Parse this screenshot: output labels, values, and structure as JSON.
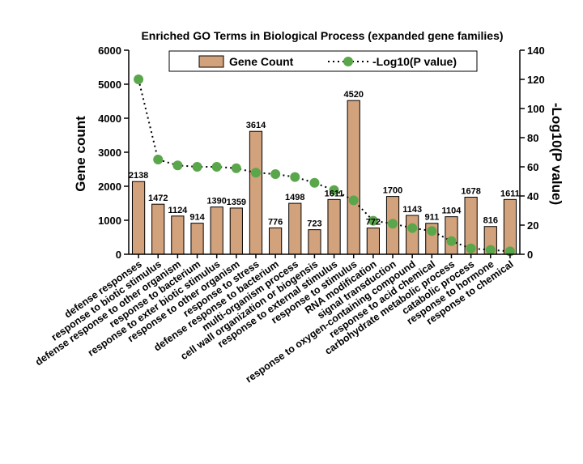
{
  "chart_data": {
    "type": "bar",
    "title": "Enriched GO Terms in Biological Process (expanded gene families)",
    "categories": [
      "defense responses",
      "response to biotic stimulus",
      "defense response to other organism",
      "response to bacterium",
      "response to exter biotic stimulus",
      "response to other organism",
      "response to stress",
      "defense response to bacterium",
      "multi-organism process",
      "cell wall organization or biogensis",
      "response to external stimulus",
      "response to stimulus",
      "RNA modification",
      "signal transduction",
      "response to oxygen-containing compound",
      "response to acid chemical",
      "carbohydrate metabolic process",
      "catabolic process",
      "response to hormone",
      "response to chemical"
    ],
    "series": [
      {
        "name": "Gene Count",
        "type": "bar",
        "axis": "left",
        "color": "#d2a27c",
        "values": [
          2138,
          1472,
          1124,
          914,
          1390,
          1359,
          3614,
          776,
          1498,
          723,
          1611,
          4520,
          772,
          1700,
          1143,
          911,
          1104,
          1678,
          816,
          1611
        ],
        "labels": [
          "2138",
          "1472",
          "1124",
          "914",
          "1390",
          "1359",
          "3614",
          "776",
          "1498",
          "723",
          "1611",
          "4520",
          "772",
          "1700",
          "1143",
          "911",
          "1104",
          "1678",
          "816",
          "1611"
        ]
      },
      {
        "name": "-Log10(P value)",
        "type": "line",
        "axis": "right",
        "color": "#5aa64a",
        "values": [
          120,
          65,
          61,
          60,
          60,
          59,
          56,
          55,
          53,
          49,
          44,
          37,
          23,
          21,
          18,
          16,
          9,
          4,
          3,
          2
        ]
      }
    ],
    "ylabel": "Gene count",
    "y2label": "-Log10(P value)",
    "ylim": [
      0,
      6000
    ],
    "y2lim": [
      0,
      140
    ],
    "yticks": [
      "0",
      "1000",
      "2000",
      "3000",
      "4000",
      "5000",
      "6000"
    ],
    "y2ticks": [
      "0",
      "20",
      "40",
      "60",
      "80",
      "100",
      "120",
      "140"
    ],
    "legend": [
      "Gene Count",
      "-Log10(P value)"
    ],
    "legend_position": "top-center"
  }
}
